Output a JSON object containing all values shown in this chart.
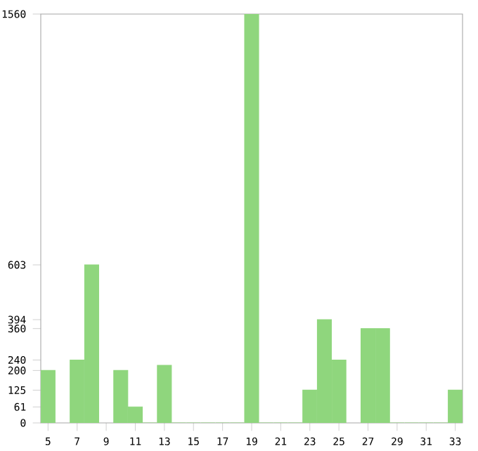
{
  "chart_data": {
    "type": "bar",
    "categories": [
      "5",
      null,
      "7",
      null,
      "9",
      null,
      "11",
      null,
      "13",
      null,
      "15",
      null,
      "17",
      null,
      "19",
      null,
      "21",
      null,
      "23",
      null,
      "25",
      null,
      "27",
      null,
      "29",
      null,
      "31",
      null,
      "33"
    ],
    "values": [
      200,
      null,
      240,
      603,
      null,
      200,
      61,
      0,
      220,
      0,
      0,
      0,
      0,
      0,
      1560,
      0,
      0,
      0,
      125,
      394,
      240,
      null,
      360,
      360,
      0,
      0,
      0,
      0,
      125
    ],
    "color": "#8fd67d",
    "ylim": [
      0,
      1560
    ],
    "yticks": [
      0,
      61,
      125,
      200,
      240,
      360,
      394,
      603,
      1560
    ],
    "grid": false
  }
}
